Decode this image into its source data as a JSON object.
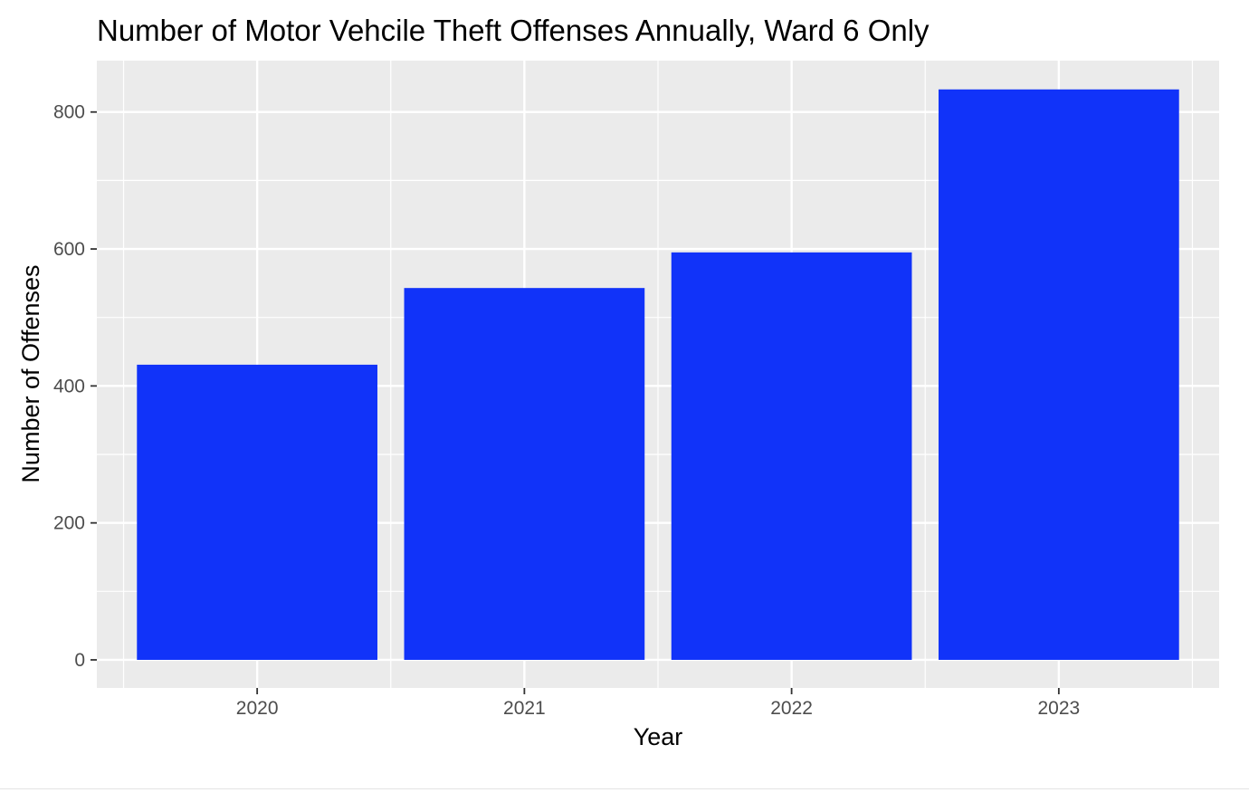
{
  "chart_data": {
    "type": "bar",
    "title": "Number of Motor Vehcile Theft Offenses Annually, Ward 6 Only",
    "xlabel": "Year",
    "ylabel": "Number of Offenses",
    "categories": [
      "2020",
      "2021",
      "2022",
      "2023"
    ],
    "values": [
      431,
      543,
      595,
      833
    ],
    "ylim": [
      -41,
      875
    ],
    "yticks": [
      0,
      200,
      400,
      600,
      800
    ],
    "ytick_labels": [
      "0",
      "200",
      "400",
      "600",
      "800"
    ],
    "grid": true,
    "legend": "none",
    "bar_color": "#1133f9",
    "panel_background": "#ebebeb",
    "grid_color": "#ffffff"
  }
}
